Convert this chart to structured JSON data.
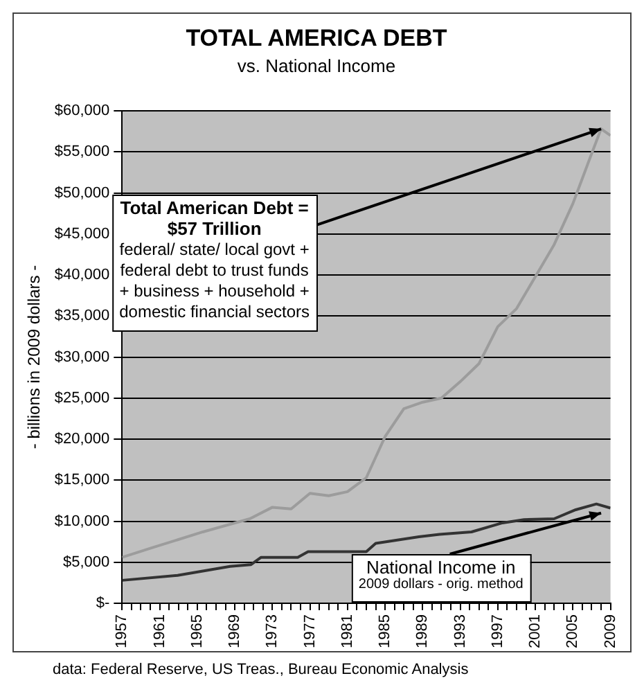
{
  "chart_data": {
    "type": "line",
    "title": "TOTAL AMERICA DEBT",
    "subtitle": "vs. National Income",
    "ylabel": "- billions in 2009 dollars -",
    "series": [
      {
        "color": "#9c9c9c",
        "x": [
          1957,
          1960,
          1965.6,
          1970.6,
          1973,
          1975,
          1977,
          1979,
          1981,
          1983,
          1985,
          1987,
          1989,
          1991,
          1993,
          1995,
          1997,
          1999,
          2001,
          2003,
          2005,
          2007,
          2008,
          2009
        ],
        "values": [
          5600,
          6700,
          8700,
          10300,
          11700,
          11500,
          13400,
          13100,
          13600,
          15300,
          20300,
          23700,
          24500,
          25000,
          27000,
          29200,
          33700,
          35900,
          39800,
          43700,
          48700,
          54800,
          57800,
          57000
        ]
      },
      {
        "color": "#333333",
        "x": [
          1957,
          1962.9,
          1968.5,
          1970.7,
          1971.8,
          1975.7,
          1976.8,
          1983,
          1984,
          1988.6,
          1990.8,
          1994.2,
          1997.5,
          1999.8,
          2003,
          2005.3,
          2007.5,
          2009
        ],
        "values": [
          2800,
          3400,
          4500,
          4700,
          5600,
          5600,
          6300,
          6300,
          7300,
          8100,
          8400,
          8700,
          9800,
          10200,
          10300,
          11400,
          12100,
          11600
        ]
      }
    ],
    "xlim": [
      1957,
      2009
    ],
    "xticks": [
      1957,
      {
        "value": 1958,
        "label": null
      },
      {
        "value": 1959,
        "label": null
      },
      {
        "value": 1960,
        "label": null
      },
      1961,
      {
        "value": 1962,
        "label": null
      },
      {
        "value": 1963,
        "label": null
      },
      {
        "value": 1964,
        "label": null
      },
      1965,
      {
        "value": 1966,
        "label": null
      },
      {
        "value": 1967,
        "label": null
      },
      {
        "value": 1968,
        "label": null
      },
      1969,
      {
        "value": 1970,
        "label": null
      },
      {
        "value": 1971,
        "label": null
      },
      {
        "value": 1972,
        "label": null
      },
      1973,
      {
        "value": 1974,
        "label": null
      },
      {
        "value": 1975,
        "label": null
      },
      {
        "value": 1976,
        "label": null
      },
      1977,
      {
        "value": 1978,
        "label": null
      },
      {
        "value": 1979,
        "label": null
      },
      {
        "value": 1980,
        "label": null
      },
      1981,
      {
        "value": 1982,
        "label": null
      },
      {
        "value": 1983,
        "label": null
      },
      {
        "value": 1984,
        "label": null
      },
      1985,
      {
        "value": 1986,
        "label": null
      },
      {
        "value": 1987,
        "label": null
      },
      {
        "value": 1988,
        "label": null
      },
      1989,
      {
        "value": 1990,
        "label": null
      },
      {
        "value": 1991,
        "label": null
      },
      {
        "value": 1992,
        "label": null
      },
      1993,
      {
        "value": 1994,
        "label": null
      },
      {
        "value": 1995,
        "label": null
      },
      {
        "value": 1996,
        "label": null
      },
      1997,
      {
        "value": 1998,
        "label": null
      },
      {
        "value": 1999,
        "label": null
      },
      {
        "value": 2000,
        "label": null
      },
      2001,
      {
        "value": 2002,
        "label": null
      },
      {
        "value": 2003,
        "label": null
      },
      {
        "value": 2004,
        "label": null
      },
      2005,
      {
        "value": 2006,
        "label": null
      },
      {
        "value": 2007,
        "label": null
      },
      {
        "value": 2008,
        "label": null
      },
      2009
    ],
    "ylim": [
      0,
      60000
    ],
    "yticks": [
      {
        "value": 0,
        "label": "$-"
      },
      {
        "value": 5000,
        "label": "$5,000"
      },
      {
        "value": 10000,
        "label": "$10,000"
      },
      {
        "value": 15000,
        "label": "$15,000"
      },
      {
        "value": 20000,
        "label": "$20,000"
      },
      {
        "value": 25000,
        "label": "$25,000"
      },
      {
        "value": 30000,
        "label": "$30,000"
      },
      {
        "value": 35000,
        "label": "$35,000"
      },
      {
        "value": 40000,
        "label": "$40,000"
      },
      {
        "value": 45000,
        "label": "$45,000"
      },
      {
        "value": 50000,
        "label": "$50,000"
      },
      {
        "value": 55000,
        "label": "$55,000"
      },
      {
        "value": 60000,
        "label": "$60,000"
      }
    ],
    "grid": "y",
    "marker": "none",
    "line_style": "solid",
    "annotations": [
      {
        "text": "Total American Debt =\n$57 Trillion\nfederal/ state/ local govt +\nfederal debt to trust funds\n+ business + household +\ndomestic financial sectors",
        "x": 2008,
        "y": 57800
      },
      {
        "text": "National Income in\n2009 dollars - orig. method",
        "x": 2008,
        "y": 11000
      },
      "data: Federal Reserve, US Treas., Bureau Economic Analysis"
    ]
  }
}
